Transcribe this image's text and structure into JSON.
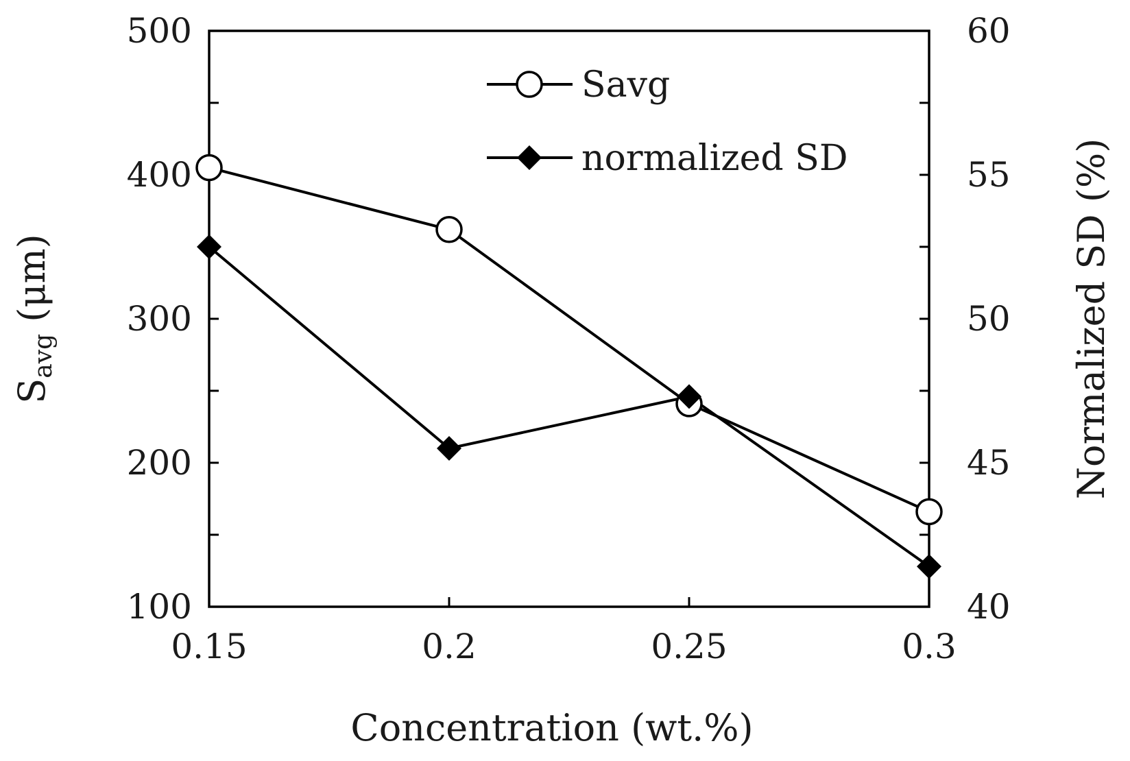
{
  "chart_data": {
    "type": "line",
    "x": [
      0.15,
      0.2,
      0.25,
      0.3
    ],
    "x_tick_labels": [
      "0.15",
      "0.2",
      "0.25",
      "0.3"
    ],
    "xlabel": "Concentration (wt.%)",
    "xlim": [
      0.15,
      0.3
    ],
    "ylabel_left": {
      "main": "S",
      "sub": "avg",
      "unit": " (μm)"
    },
    "ylim_left": [
      100,
      500
    ],
    "y_left_ticks": [
      100,
      200,
      300,
      400,
      500
    ],
    "y_left_tick_labels": [
      "100",
      "200",
      "300",
      "400",
      "500"
    ],
    "ylabel_right": "Normalized SD (%)",
    "ylim_right": [
      40,
      60
    ],
    "y_right_ticks": [
      40,
      45,
      50,
      55,
      60
    ],
    "y_right_tick_labels": [
      "40",
      "45",
      "50",
      "55",
      "60"
    ],
    "series": [
      {
        "name": "Savg",
        "axis": "left",
        "marker": "open-circle",
        "values": [
          405,
          362,
          241,
          166
        ]
      },
      {
        "name": "normalized SD",
        "axis": "right",
        "marker": "filled-diamond",
        "values": [
          52.5,
          45.5,
          47.3,
          41.4
        ]
      }
    ],
    "legend_position": "top-center",
    "grid": false,
    "colors": {
      "line": "#000000",
      "marker_fill_open": "#ffffff",
      "marker_fill_solid": "#000000"
    }
  }
}
